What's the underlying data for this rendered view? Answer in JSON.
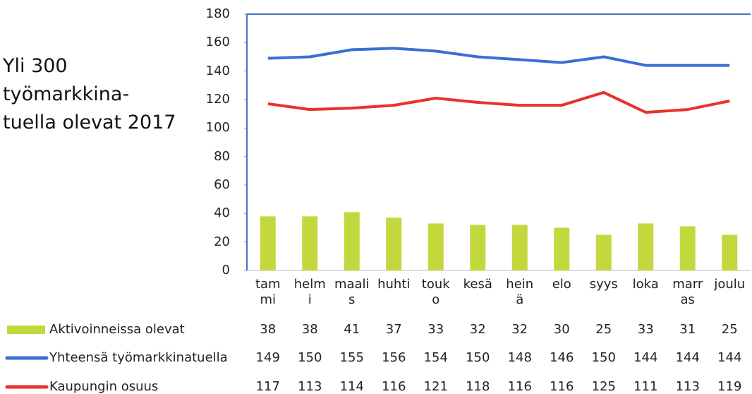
{
  "chart_data": {
    "type": "bar_line",
    "title": "Yli 300\ntyömarkkina-\ntuella olevat 2017",
    "categories": [
      "tam\nmi",
      "helm\ni",
      "maali\ns",
      "huhti",
      "touk\no",
      "kesä",
      "hein\nä",
      "elo",
      "syys",
      "loka",
      "marr\nas",
      "joulu"
    ],
    "series": [
      {
        "name": "Aktivoinneissa olevat",
        "type": "bar",
        "color": "#c3d83c",
        "values": [
          38,
          38,
          41,
          37,
          33,
          32,
          32,
          30,
          25,
          33,
          31,
          25
        ]
      },
      {
        "name": "Yhteensä työmarkkinatuella",
        "type": "line",
        "color": "#3b6fd6",
        "values": [
          149,
          150,
          155,
          156,
          154,
          150,
          148,
          146,
          150,
          144,
          144,
          144
        ]
      },
      {
        "name": "Kaupungin osuus",
        "type": "line",
        "color": "#e8322b",
        "values": [
          117,
          113,
          114,
          116,
          121,
          118,
          116,
          116,
          125,
          111,
          113,
          119
        ]
      }
    ],
    "ylim": [
      0,
      180
    ],
    "yticks": [
      0,
      20,
      40,
      60,
      80,
      100,
      120,
      140,
      160,
      180
    ],
    "data_table": true
  }
}
